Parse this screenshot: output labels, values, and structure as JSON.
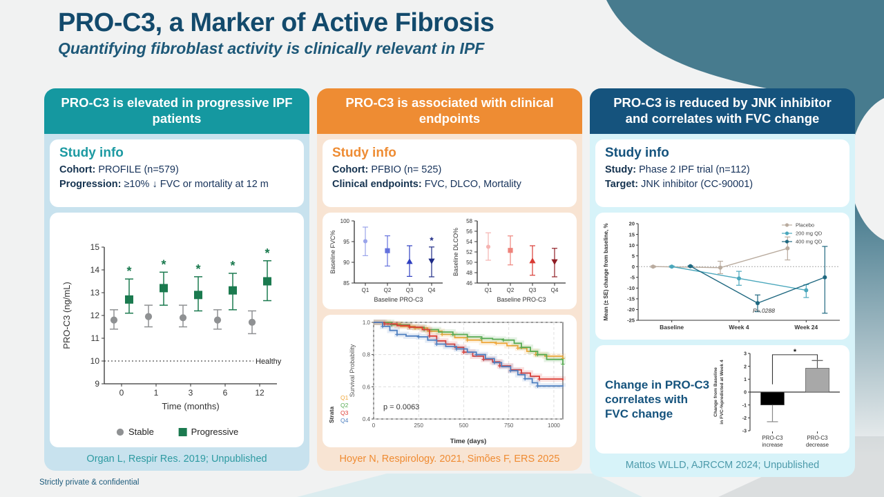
{
  "slide": {
    "title": "PRO-C3, a Marker of Active Fibrosis",
    "subtitle": "Quantifying fibroblast activity is clinically relevant in IPF",
    "footer": "Strictly private & confidential"
  },
  "colors": {
    "page_bg": "#f1f2f2",
    "decor_teal": "#477b8e",
    "title_navy": "#134a6c",
    "body_text_navy": "#16325a"
  },
  "panels": [
    {
      "header": "PRO-C3 is elevated in progressive IPF patients",
      "header_color": "#1598a0",
      "body_color": "#c8e2ee",
      "accent_color": "#1d9aa2",
      "citation_color": "#2d9aa1",
      "study_info": {
        "heading": "Study info",
        "rows": [
          {
            "label": "Cohort:",
            "value": "PROFILE (n=579)"
          },
          {
            "label": "Progression:",
            "value": "≥10% ↓ FVC or mortality at 12 m"
          }
        ]
      },
      "citation": "Organ L, Respir Res. 2019; Unpublished"
    },
    {
      "header": "PRO-C3 is associated with clinical endpoints",
      "header_color": "#ee8c33",
      "body_color": "#f8e4d3",
      "accent_color": "#ee8c33",
      "citation_color": "#ef8b32",
      "study_info": {
        "heading": "Study info",
        "rows": [
          {
            "label": "Cohort:",
            "value": "PFBIO (n= 525)"
          },
          {
            "label": "Clinical endpoints:",
            "value": "FVC, DLCO, Mortality"
          }
        ]
      },
      "citation": "Hoyer N, Respirology. 2021, Simões F, ERS 2025"
    },
    {
      "header": "PRO-C3 is reduced by JNK inhibitor and correlates with FVC change",
      "header_color": "#15537d",
      "body_color": "#d7f3f9",
      "accent_color": "#15537d",
      "citation_color": "#4c9aaa",
      "study_info": {
        "heading": "Study info",
        "rows": [
          {
            "label": "Study:",
            "value": "Phase 2 IPF trial (n=112)"
          },
          {
            "label": "Target:",
            "value": "JNK inhibitor (CC-90001)"
          }
        ]
      },
      "highlight_text": "Change in PRO-C3 correlates with FVC change",
      "citation": "Mattos WLLD, AJRCCM 2024; Unpublished"
    }
  ],
  "chart_data": [
    {
      "id": "proc3-longitudinal",
      "type": "scatter",
      "xlabel": "Time (months)",
      "ylabel": "PRO-C3 (ng/mL)",
      "categories": [
        "0",
        "1",
        "3",
        "6",
        "12"
      ],
      "ylim": [
        9,
        15
      ],
      "ytick_step": 1,
      "reference_line": {
        "y": 10,
        "label": "Healthy"
      },
      "significance_symbol": "*",
      "legend_position": "bottom",
      "series": [
        {
          "name": "Stable",
          "marker": "circle",
          "color": "#8f9193",
          "values": [
            11.8,
            11.95,
            11.9,
            11.8,
            11.7
          ],
          "lo": [
            11.4,
            11.5,
            11.5,
            11.4,
            11.2
          ],
          "hi": [
            12.25,
            12.45,
            12.45,
            12.25,
            12.2
          ],
          "star": false
        },
        {
          "name": "Progressive",
          "marker": "square",
          "color": "#1b7a4f",
          "values": [
            12.7,
            13.2,
            12.9,
            13.1,
            13.5
          ],
          "lo": [
            12.1,
            12.45,
            12.2,
            12.25,
            12.65
          ],
          "hi": [
            13.6,
            13.9,
            13.7,
            13.85,
            14.4
          ],
          "star": true
        }
      ]
    },
    {
      "id": "baseline-fvc",
      "type": "scatter",
      "xlabel": "Baseline PRO-C3",
      "ylabel": "Baseline FVC%",
      "categories": [
        "Q1",
        "Q2",
        "Q3",
        "Q4"
      ],
      "ylim": [
        85,
        100
      ],
      "ytick_step": 5,
      "significance_symbol": "*",
      "points": [
        {
          "x": "Q1",
          "y": 95.1,
          "lo": 91.6,
          "hi": 98.5,
          "marker": "circle",
          "color": "#9aa4ea",
          "star": false
        },
        {
          "x": "Q2",
          "y": 92.8,
          "lo": 89.1,
          "hi": 96.4,
          "marker": "square",
          "color": "#6472dd",
          "star": false
        },
        {
          "x": "Q3",
          "y": 90.2,
          "lo": 86.6,
          "hi": 94.0,
          "marker": "triangle-up",
          "color": "#2f3fc0",
          "star": false
        },
        {
          "x": "Q4",
          "y": 90.3,
          "lo": 86.5,
          "hi": 93.7,
          "marker": "triangle-down",
          "color": "#1d2a86",
          "star": true
        }
      ]
    },
    {
      "id": "baseline-dlco",
      "type": "scatter",
      "xlabel": "Baseline PRO-C3",
      "ylabel": "Baseline DLCO%",
      "categories": [
        "Q1",
        "Q2",
        "Q3",
        "Q4"
      ],
      "ylim": [
        46,
        58
      ],
      "ytick_step": 2,
      "points": [
        {
          "x": "Q1",
          "y": 53.0,
          "lo": 50.4,
          "hi": 55.7,
          "marker": "circle",
          "color": "#f5b3b1",
          "star": false
        },
        {
          "x": "Q2",
          "y": 52.3,
          "lo": 49.5,
          "hi": 55.1,
          "marker": "square",
          "color": "#ee837b",
          "star": false
        },
        {
          "x": "Q3",
          "y": 50.3,
          "lo": 47.5,
          "hi": 53.2,
          "marker": "triangle-up",
          "color": "#d93a33",
          "star": false
        },
        {
          "x": "Q4",
          "y": 50.1,
          "lo": 47.2,
          "hi": 52.7,
          "marker": "triangle-down",
          "color": "#8f1d24",
          "star": false
        }
      ]
    },
    {
      "id": "survival",
      "type": "line",
      "xlabel": "Time (days)",
      "ylabel": "Survival Probability",
      "xlim": [
        0,
        1050
      ],
      "xticks": [
        0,
        250,
        500,
        750,
        1000
      ],
      "ylim": [
        0.4,
        1.0
      ],
      "yticks": [
        0.4,
        0.6,
        0.8,
        1.0
      ],
      "pvalue": "p = 0.0063",
      "legend_title": "Strata",
      "legend_position": "bottom-left-outside",
      "grid": "dashed",
      "series": [
        {
          "name": "Q1",
          "color": "#f0a73a",
          "points": [
            [
              0,
              1
            ],
            [
              80,
              0.99
            ],
            [
              150,
              0.975
            ],
            [
              230,
              0.965
            ],
            [
              300,
              0.945
            ],
            [
              380,
              0.925
            ],
            [
              450,
              0.905
            ],
            [
              520,
              0.89
            ],
            [
              600,
              0.875
            ],
            [
              680,
              0.87
            ],
            [
              740,
              0.855
            ],
            [
              800,
              0.84
            ],
            [
              850,
              0.82
            ],
            [
              900,
              0.8
            ],
            [
              950,
              0.79
            ],
            [
              1050,
              0.775
            ]
          ]
        },
        {
          "name": "Q2",
          "color": "#57ab53",
          "points": [
            [
              0,
              1
            ],
            [
              100,
              0.985
            ],
            [
              200,
              0.97
            ],
            [
              280,
              0.955
            ],
            [
              360,
              0.94
            ],
            [
              440,
              0.925
            ],
            [
              520,
              0.91
            ],
            [
              600,
              0.9
            ],
            [
              660,
              0.895
            ],
            [
              720,
              0.89
            ],
            [
              780,
              0.87
            ],
            [
              820,
              0.845
            ],
            [
              870,
              0.82
            ],
            [
              910,
              0.8
            ],
            [
              960,
              0.77
            ],
            [
              1050,
              0.74
            ]
          ]
        },
        {
          "name": "Q3",
          "color": "#dd3c33",
          "points": [
            [
              0,
              1
            ],
            [
              60,
              0.99
            ],
            [
              130,
              0.98
            ],
            [
              200,
              0.97
            ],
            [
              270,
              0.955
            ],
            [
              310,
              0.915
            ],
            [
              350,
              0.885
            ],
            [
              400,
              0.865
            ],
            [
              450,
              0.845
            ],
            [
              500,
              0.815
            ],
            [
              550,
              0.79
            ],
            [
              610,
              0.77
            ],
            [
              660,
              0.755
            ],
            [
              700,
              0.73
            ],
            [
              760,
              0.705
            ],
            [
              820,
              0.685
            ],
            [
              870,
              0.665
            ],
            [
              920,
              0.648
            ],
            [
              1050,
              0.64
            ]
          ]
        },
        {
          "name": "Q4",
          "color": "#4e7fc0",
          "points": [
            [
              0,
              1
            ],
            [
              50,
              0.975
            ],
            [
              90,
              0.95
            ],
            [
              130,
              0.925
            ],
            [
              180,
              0.915
            ],
            [
              250,
              0.91
            ],
            [
              300,
              0.89
            ],
            [
              350,
              0.865
            ],
            [
              400,
              0.85
            ],
            [
              460,
              0.835
            ],
            [
              520,
              0.815
            ],
            [
              570,
              0.8
            ],
            [
              620,
              0.775
            ],
            [
              670,
              0.75
            ],
            [
              710,
              0.725
            ],
            [
              760,
              0.7
            ],
            [
              800,
              0.675
            ],
            [
              840,
              0.65
            ],
            [
              880,
              0.625
            ],
            [
              910,
              0.605
            ],
            [
              1050,
              0.6
            ]
          ]
        }
      ]
    },
    {
      "id": "jnk-change",
      "type": "line",
      "ylabel": "Mean (± SE) change from baseline, %",
      "categories": [
        "Baseline",
        "Week 4",
        "Week 24"
      ],
      "ylim": [
        -25,
        20
      ],
      "ytick_step": 5,
      "pvalue": "P=.0288",
      "zero_line": true,
      "legend_position": "top-right",
      "series": [
        {
          "name": "Placebo",
          "color": "#b9ab9e",
          "values": [
            0,
            -0.5,
            8.5
          ],
          "lo": [
            -0.3,
            -3.3,
            3.1
          ],
          "hi": [
            0.3,
            2.5,
            13.8
          ]
        },
        {
          "name": "200 mg QD",
          "color": "#4aa7bc",
          "values": [
            0,
            -5.5,
            -11
          ],
          "lo": [
            -0.3,
            -8.7,
            -14.4
          ],
          "hi": [
            0.3,
            -2.2,
            -8.4
          ]
        },
        {
          "name": "400 mg QD",
          "color": "#1f6880",
          "values": [
            0.2,
            -17,
            -5
          ],
          "lo": [
            0,
            -21,
            -21.7
          ],
          "hi": [
            0.4,
            -13.2,
            9.4
          ]
        }
      ]
    },
    {
      "id": "fvc-bar",
      "type": "bar",
      "ylabel_lines": [
        "Change from Baseline",
        "in FVC-%predicted at Week 4"
      ],
      "categories": [
        [
          "PRO-C3",
          "increase"
        ],
        [
          "PRO-C3",
          "decrease"
        ]
      ],
      "values": [
        -1.0,
        1.85
      ],
      "whisker_end": [
        -2.3,
        2.45
      ],
      "bar_colors": [
        "#000000",
        "#a8a8a8"
      ],
      "ylim": [
        -3,
        3
      ],
      "ytick_step": 1,
      "significance": "*"
    }
  ]
}
